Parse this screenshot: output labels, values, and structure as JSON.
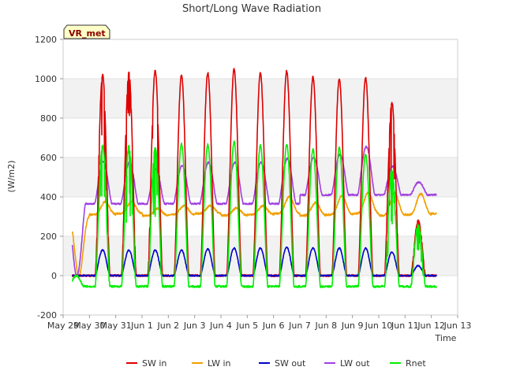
{
  "chart_data": {
    "type": "line",
    "title": "Short/Long Wave Radiation",
    "xlabel": "Time",
    "ylabel": "(W/m2)",
    "badge": "VR_met",
    "x_tick_labels": [
      "May 29",
      "May 30",
      "May 31",
      "Jun 1",
      "Jun 2",
      "Jun 3",
      "Jun 4",
      "Jun 5",
      "Jun 6",
      "Jun 7",
      "Jun 8",
      "Jun 9",
      "Jun 10",
      "Jun 11",
      "Jun 12",
      "Jun 13"
    ],
    "y_ticks": [
      -200,
      0,
      200,
      400,
      600,
      800,
      1000,
      1200
    ],
    "xlim": [
      0,
      15
    ],
    "ylim": [
      -200,
      1200
    ],
    "legend_position": "bottom",
    "x_data_range": [
      0.35,
      14.2
    ],
    "days": [
      0,
      1,
      2,
      3,
      4,
      5,
      6,
      7,
      8,
      9,
      10,
      11,
      12,
      13,
      14
    ],
    "series": [
      {
        "name": "SW in",
        "color": "#dd0000",
        "night_value": 0,
        "daily_peak": [
          0,
          1020,
          1030,
          1040,
          1020,
          1030,
          1050,
          1030,
          1040,
          1010,
          1000,
          1005,
          880,
          280,
          1010
        ]
      },
      {
        "name": "LW in",
        "color": "#f0a000",
        "night_value": 305,
        "daily_peak": [
          0,
          370,
          365,
          340,
          350,
          345,
          345,
          350,
          390,
          370,
          400,
          410,
          420,
          410,
          400
        ]
      },
      {
        "name": "SW out",
        "color": "#0000cc",
        "night_value": 0,
        "daily_peak": [
          0,
          130,
          130,
          130,
          130,
          135,
          140,
          140,
          145,
          140,
          140,
          140,
          120,
          50,
          140
        ]
      },
      {
        "name": "LW out",
        "color": "#a040e0",
        "night_value": 365,
        "daily_peak": [
          0,
          580,
          575,
          540,
          560,
          575,
          575,
          575,
          595,
          600,
          615,
          655,
          555,
          475,
          620
        ]
      },
      {
        "name": "Rnet",
        "color": "#00ee00",
        "night_value": -55,
        "daily_peak": [
          0,
          660,
          660,
          650,
          670,
          665,
          680,
          660,
          665,
          640,
          650,
          615,
          540,
          260,
          620
        ]
      }
    ]
  }
}
